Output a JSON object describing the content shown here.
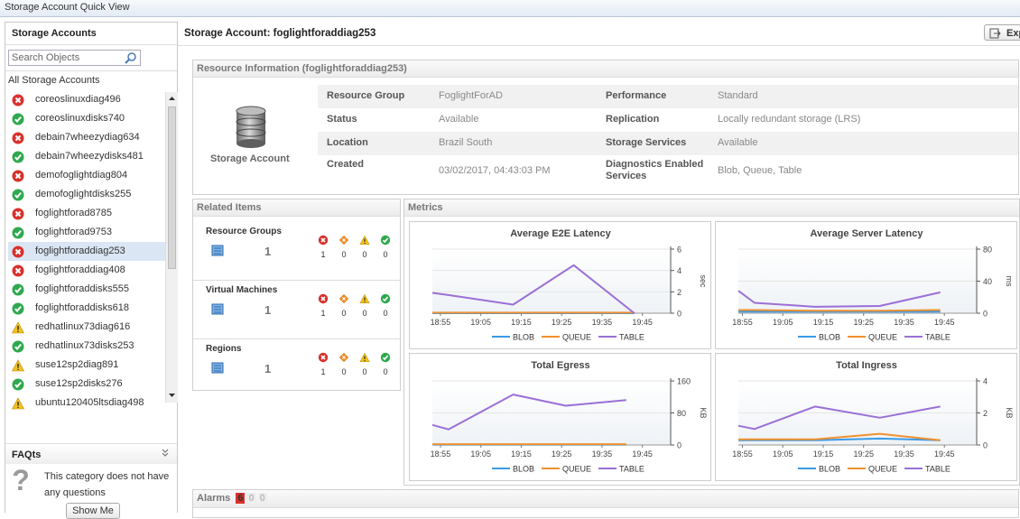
{
  "window_title": "Storage Account Quick View",
  "sidebar": {
    "title": "Storage Accounts",
    "search_placeholder": "Search Objects",
    "root": "All Storage Accounts",
    "accounts": [
      {
        "name": "coreoslinuxdiag496",
        "status": "error"
      },
      {
        "name": "coreoslinuxdisks740",
        "status": "ok"
      },
      {
        "name": "debain7wheezydiag634",
        "status": "error"
      },
      {
        "name": "debain7wheezydisks481",
        "status": "ok"
      },
      {
        "name": "demofoglightdiag804",
        "status": "error"
      },
      {
        "name": "demofoglightdisks255",
        "status": "ok"
      },
      {
        "name": "foglightforad8785",
        "status": "error"
      },
      {
        "name": "foglightforad9753",
        "status": "ok"
      },
      {
        "name": "foglightforaddiag253",
        "status": "error",
        "selected": true
      },
      {
        "name": "foglightforaddiag408",
        "status": "error"
      },
      {
        "name": "foglightforaddisks555",
        "status": "ok"
      },
      {
        "name": "foglightforaddisks618",
        "status": "ok"
      },
      {
        "name": "redhatlinux73diag616",
        "status": "warning"
      },
      {
        "name": "redhatlinux73disks253",
        "status": "ok"
      },
      {
        "name": "suse12sp2diag891",
        "status": "warning"
      },
      {
        "name": "suse12sp2disks276",
        "status": "ok"
      },
      {
        "name": "ubuntu120405ltsdiag498",
        "status": "warning"
      }
    ],
    "faq": {
      "title": "FAQts",
      "text": "This category does not have any questions",
      "button": "Show Me"
    }
  },
  "main": {
    "title": "Storage Account: foglightforaddiag253",
    "export": "Exp"
  },
  "resource_info": {
    "title": "Resource Information (foglightforaddiag253)",
    "icon_label": "Storage Account",
    "rows": [
      [
        [
          "Resource Group",
          "FoglightForAD"
        ],
        [
          "Performance",
          "Standard"
        ]
      ],
      [
        [
          "Status",
          "Available"
        ],
        [
          "Replication",
          "Locally redundant storage (LRS)"
        ]
      ],
      [
        [
          "Location",
          "Brazil South"
        ],
        [
          "Storage Services",
          "Available"
        ]
      ],
      [
        [
          "Created",
          "03/02/2017, 04:43:03 PM"
        ],
        [
          "Diagnostics Enabled Services",
          "Blob, Queue, Table"
        ]
      ]
    ]
  },
  "related": {
    "title": "Related Items",
    "groups": [
      {
        "name": "Resource Groups",
        "count": 1,
        "alarms": [
          1,
          0,
          0,
          0
        ]
      },
      {
        "name": "Virtual Machines",
        "count": 1,
        "alarms": [
          1,
          0,
          0,
          0
        ]
      },
      {
        "name": "Regions",
        "count": 1,
        "alarms": [
          1,
          0,
          0,
          0
        ]
      }
    ]
  },
  "metrics_title": "Metrics",
  "chart_data": [
    {
      "type": "line",
      "title": "Average E2E Latency",
      "y_label": "sec",
      "xlim": [
        "18:53",
        "19:52"
      ],
      "xticks": [
        "18:55",
        "19:05",
        "19:15",
        "19:25",
        "19:35",
        "19:45"
      ],
      "ylim": [
        0,
        6
      ],
      "yticks": [
        0,
        2,
        4,
        6
      ],
      "grid": true,
      "x": [
        "18:53",
        "18:57",
        "19:13",
        "19:28",
        "19:43"
      ],
      "series": [
        {
          "name": "BLOB",
          "color": "#3a9ae8",
          "values": [
            0,
            0,
            0,
            0,
            0
          ]
        },
        {
          "name": "QUEUE",
          "color": "#f0912e",
          "values": [
            0.05,
            0.05,
            0.05,
            0.05,
            0.05
          ]
        },
        {
          "name": "TABLE",
          "color": "#9b6fd6",
          "values": [
            1.9,
            1.7,
            0.8,
            4.5,
            0
          ]
        }
      ]
    },
    {
      "type": "line",
      "title": "Average Server Latency",
      "y_label": "ms",
      "xlim": [
        "18:54",
        "19:53"
      ],
      "xticks": [
        "18:55",
        "19:05",
        "19:15",
        "19:25",
        "19:35",
        "19:45"
      ],
      "ylim": [
        0,
        80
      ],
      "yticks": [
        0,
        40,
        80
      ],
      "grid": true,
      "x": [
        "18:54",
        "18:58",
        "19:13",
        "19:29",
        "19:44"
      ],
      "series": [
        {
          "name": "BLOB",
          "color": "#3a9ae8",
          "values": [
            2,
            2,
            2,
            2,
            2
          ]
        },
        {
          "name": "QUEUE",
          "color": "#f0912e",
          "values": [
            4,
            4,
            3,
            3,
            4
          ]
        },
        {
          "name": "TABLE",
          "color": "#9b6fd6",
          "values": [
            28,
            13,
            8,
            9,
            26
          ]
        }
      ]
    },
    {
      "type": "line",
      "title": "Total Egress",
      "y_label": "KB",
      "xlim": [
        "18:53",
        "19:52"
      ],
      "xticks": [
        "18:55",
        "19:05",
        "19:15",
        "19:25",
        "19:35",
        "19:45"
      ],
      "ylim": [
        0,
        160
      ],
      "yticks": [
        0,
        80,
        160
      ],
      "grid": true,
      "x": [
        "18:53",
        "18:57",
        "19:13",
        "19:26",
        "19:41"
      ],
      "series": [
        {
          "name": "BLOB",
          "color": "#3a9ae8",
          "values": [
            1,
            1,
            1,
            1,
            1
          ]
        },
        {
          "name": "QUEUE",
          "color": "#f0912e",
          "values": [
            2,
            2,
            2,
            2,
            2
          ]
        },
        {
          "name": "TABLE",
          "color": "#9b6fd6",
          "values": [
            50,
            39,
            126,
            98,
            112
          ]
        }
      ]
    },
    {
      "type": "line",
      "title": "Total Ingress",
      "y_label": "KB",
      "xlim": [
        "18:54",
        "19:53"
      ],
      "xticks": [
        "18:55",
        "19:05",
        "19:15",
        "19:25",
        "19:35",
        "19:45"
      ],
      "ylim": [
        0,
        4
      ],
      "yticks": [
        0,
        2,
        4
      ],
      "grid": true,
      "x": [
        "18:54",
        "18:58",
        "19:13",
        "19:29",
        "19:44"
      ],
      "series": [
        {
          "name": "BLOB",
          "color": "#3a9ae8",
          "values": [
            0.3,
            0.3,
            0.3,
            0.4,
            0.3
          ]
        },
        {
          "name": "QUEUE",
          "color": "#f0912e",
          "values": [
            0.35,
            0.35,
            0.35,
            0.7,
            0.3
          ]
        },
        {
          "name": "TABLE",
          "color": "#9b6fd6",
          "values": [
            1.2,
            1.0,
            2.4,
            1.7,
            2.4
          ]
        }
      ]
    }
  ],
  "alarms": {
    "title": "Alarms",
    "counts": [
      6,
      0,
      0
    ]
  }
}
